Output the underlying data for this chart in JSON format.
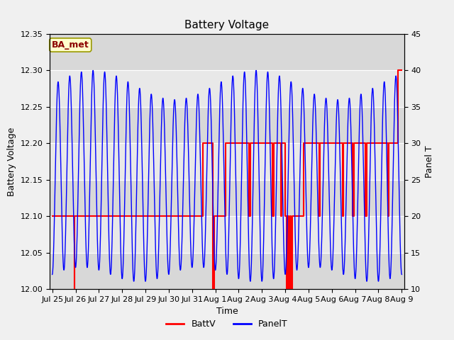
{
  "title": "Battery Voltage",
  "xlabel": "Time",
  "ylabel_left": "Battery Voltage",
  "ylabel_right": "Panel T",
  "ylim_left": [
    12.0,
    12.35
  ],
  "ylim_right": [
    10,
    45
  ],
  "yticks_left": [
    12.0,
    12.05,
    12.1,
    12.15,
    12.2,
    12.25,
    12.3,
    12.35
  ],
  "yticks_right": [
    10,
    15,
    20,
    25,
    30,
    35,
    40,
    45
  ],
  "xtick_labels": [
    "Jul 25",
    "Jul 26",
    "Jul 27",
    "Jul 28",
    "Jul 29",
    "Jul 30",
    "Jul 31",
    "Aug 1",
    "Aug 2",
    "Aug 3",
    "Aug 4",
    "Aug 5",
    "Aug 6",
    "Aug 7",
    "Aug 8",
    "Aug 9"
  ],
  "annotation_text": "BA_met",
  "annotation_color": "#8B0000",
  "annotation_bg": "#FFFFCC",
  "annotation_border": "#999900",
  "background_color": "#F0F0F0",
  "plot_bg_inner": "#E8E8E8",
  "plot_bg_stripe": "#D8D8D8",
  "grid_color": "#FFFFFF",
  "batt_color": "#FF0000",
  "panel_color": "#0000FF",
  "figsize": [
    6.4,
    4.8
  ],
  "dpi": 100
}
